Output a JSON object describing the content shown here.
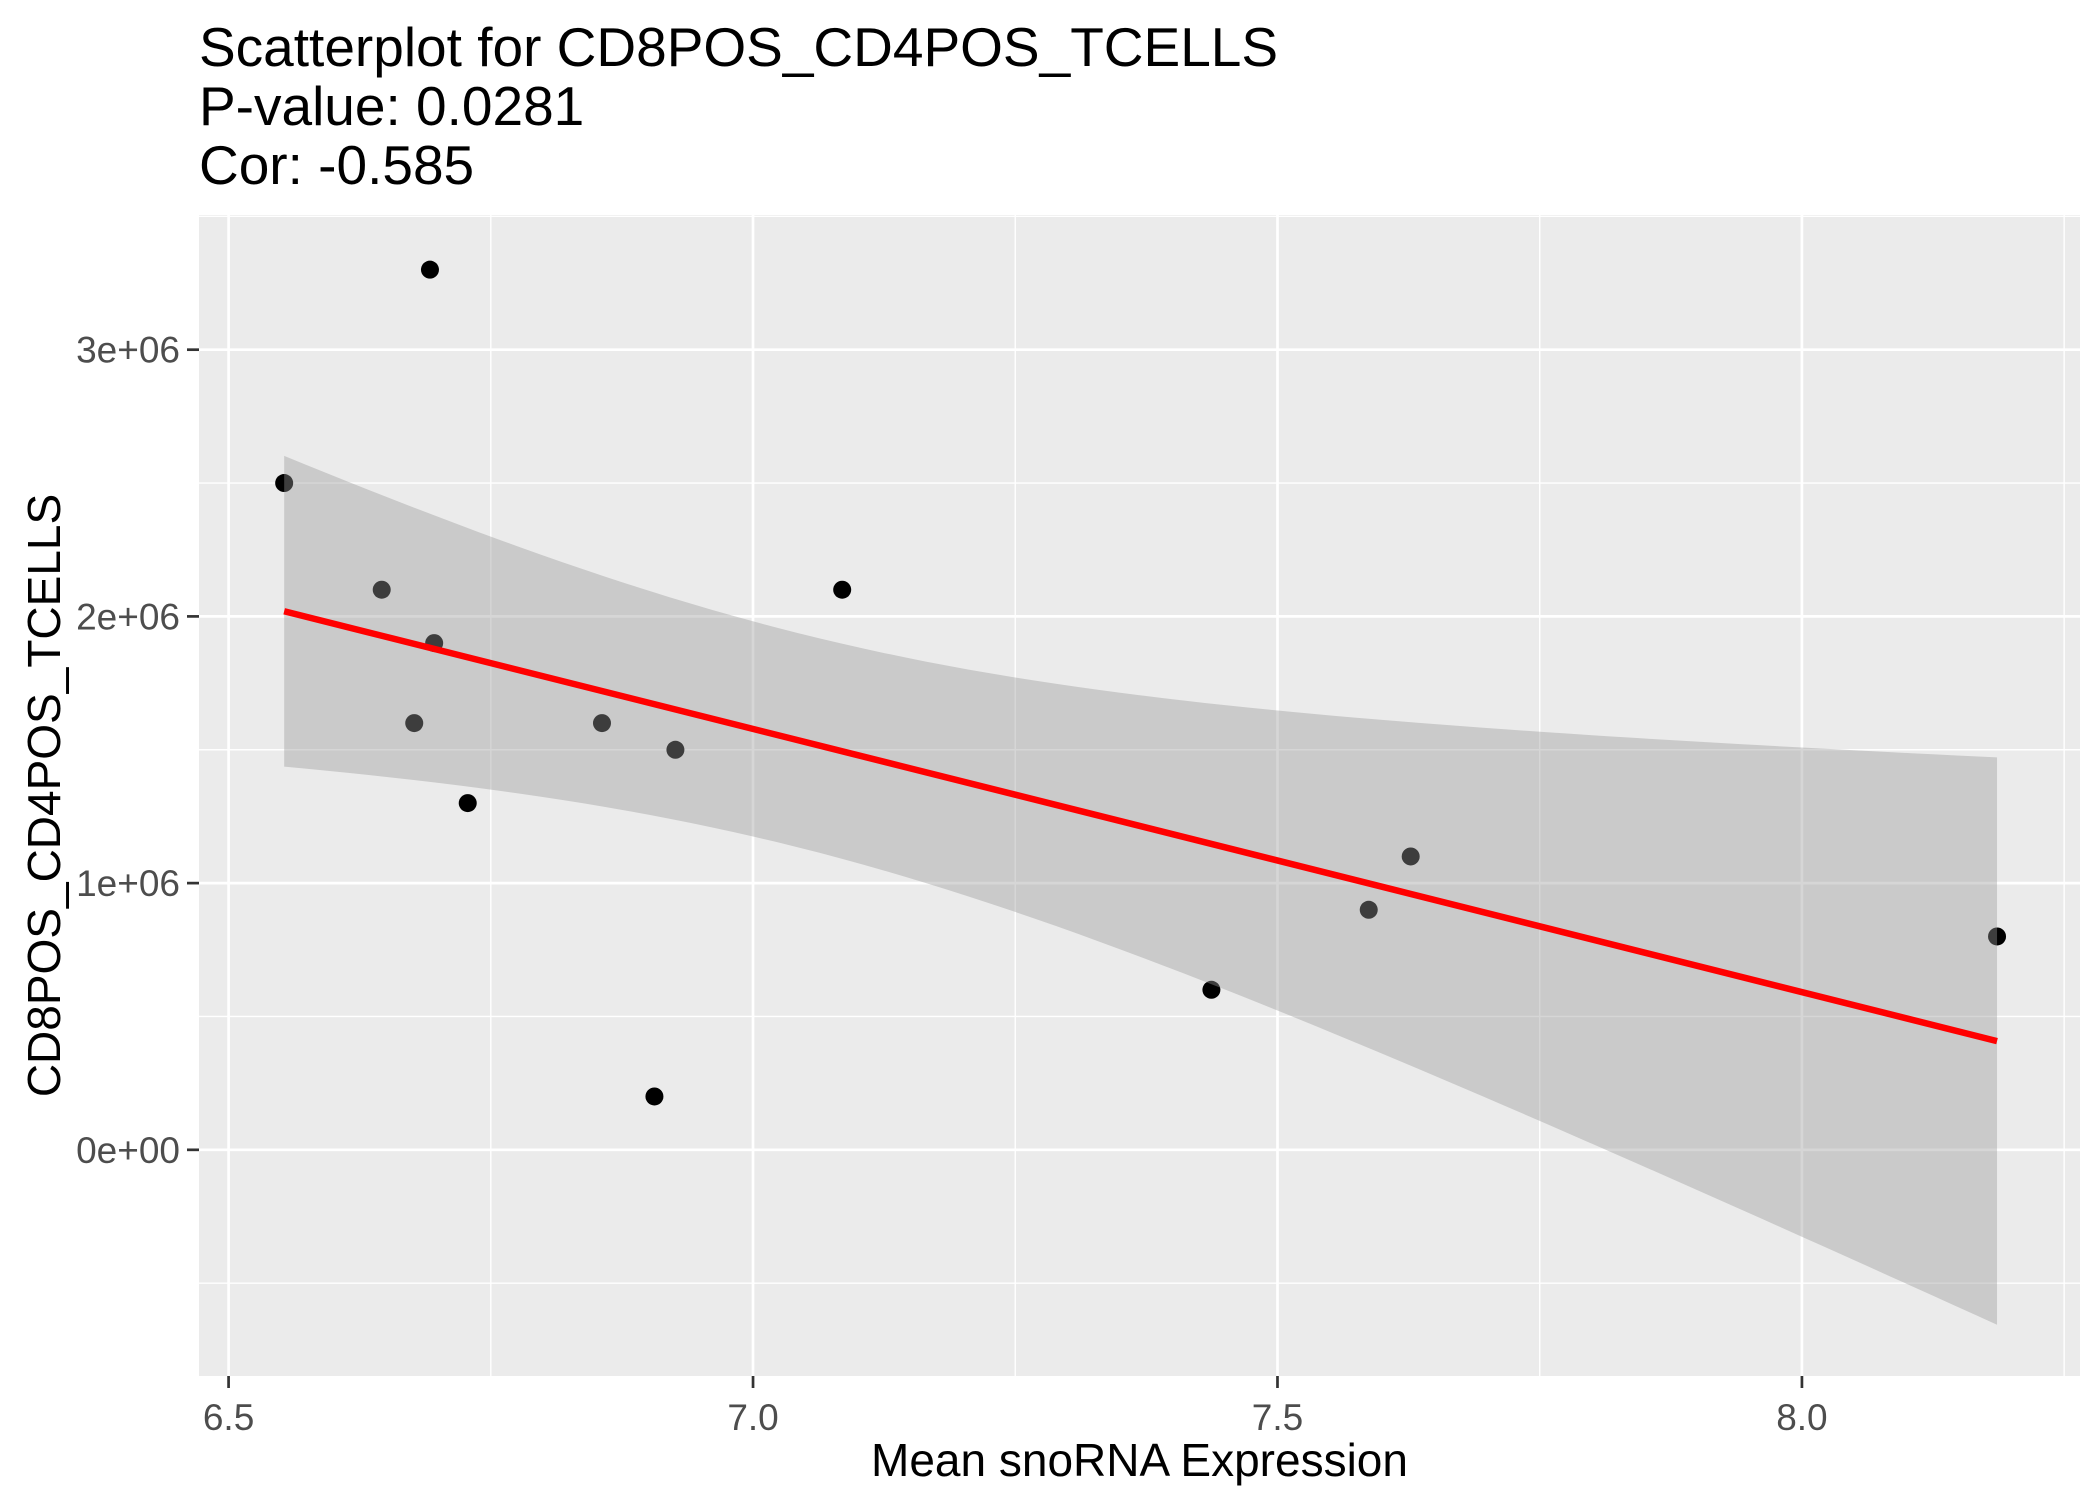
{
  "chart_data": {
    "type": "scatter",
    "title_lines": [
      "Scatterplot for CD8POS_CD4POS_TCELLS",
      "P-value: 0.0281",
      "Cor: -0.585"
    ],
    "xlabel": "Mean snoRNA Expression",
    "ylabel": "CD8POS_CD4POS_TCELLS",
    "xlim": [
      6.4718,
      8.2651
    ],
    "ylim": [
      -848000,
      3505000
    ],
    "x_ticks": [
      {
        "value": 6.5,
        "label": "6.5"
      },
      {
        "value": 7.0,
        "label": "7.0"
      },
      {
        "value": 7.5,
        "label": "7.5"
      },
      {
        "value": 8.0,
        "label": "8.0"
      }
    ],
    "y_ticks": [
      {
        "value": 0,
        "label": "0e+00"
      },
      {
        "value": 1000000,
        "label": "1e+06"
      },
      {
        "value": 2000000,
        "label": "2e+06"
      },
      {
        "value": 3000000,
        "label": "3e+06"
      }
    ],
    "grid": true,
    "points": [
      {
        "x": 6.553,
        "y": 2500000
      },
      {
        "x": 6.646,
        "y": 2100000
      },
      {
        "x": 6.692,
        "y": 3300000
      },
      {
        "x": 6.696,
        "y": 1900000
      },
      {
        "x": 6.677,
        "y": 1600000
      },
      {
        "x": 6.728,
        "y": 1300000
      },
      {
        "x": 6.856,
        "y": 1600000
      },
      {
        "x": 6.926,
        "y": 1500000
      },
      {
        "x": 6.906,
        "y": 200000
      },
      {
        "x": 7.085,
        "y": 2100000
      },
      {
        "x": 7.437,
        "y": 600000
      },
      {
        "x": 7.587,
        "y": 900000
      },
      {
        "x": 7.627,
        "y": 1100000
      },
      {
        "x": 8.186,
        "y": 800000
      }
    ],
    "fit": {
      "linear": true,
      "confidence_band": true
    },
    "colors": {
      "panel_background": "#EBEBEB",
      "gridlines": "#FFFFFF",
      "points": "#000000",
      "fit_line": "#FF0000",
      "confidence_band": "#999999",
      "tick_labels": "#4D4D4D"
    }
  }
}
